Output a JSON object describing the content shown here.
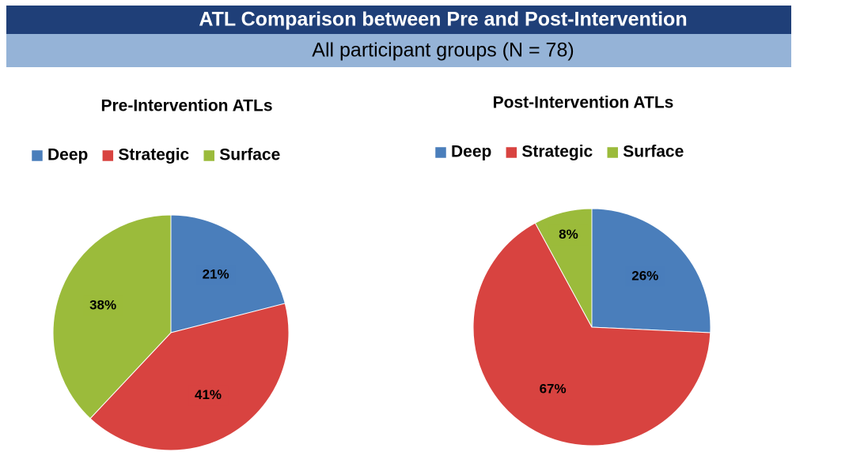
{
  "header": {
    "title": "ATL Comparison between Pre and Post-Intervention",
    "subtitle": "All participant groups (N = 78)"
  },
  "chart_data": [
    {
      "type": "pie",
      "title": "Pre-Intervention ATLs",
      "categories": [
        "Deep",
        "Strategic",
        "Surface"
      ],
      "values": [
        21,
        41,
        38
      ],
      "value_labels": [
        "21%",
        "41%",
        "38%"
      ],
      "colors": [
        "#4a7ebb",
        "#d84340",
        "#9bbb3b"
      ],
      "legend": "top"
    },
    {
      "type": "pie",
      "title": "Post-Intervention ATLs",
      "categories": [
        "Deep",
        "Strategic",
        "Surface"
      ],
      "values": [
        26,
        67,
        8
      ],
      "value_labels": [
        "26%",
        "67%",
        "8%"
      ],
      "colors": [
        "#4a7ebb",
        "#d84340",
        "#9bbb3b"
      ],
      "legend": "top"
    }
  ]
}
